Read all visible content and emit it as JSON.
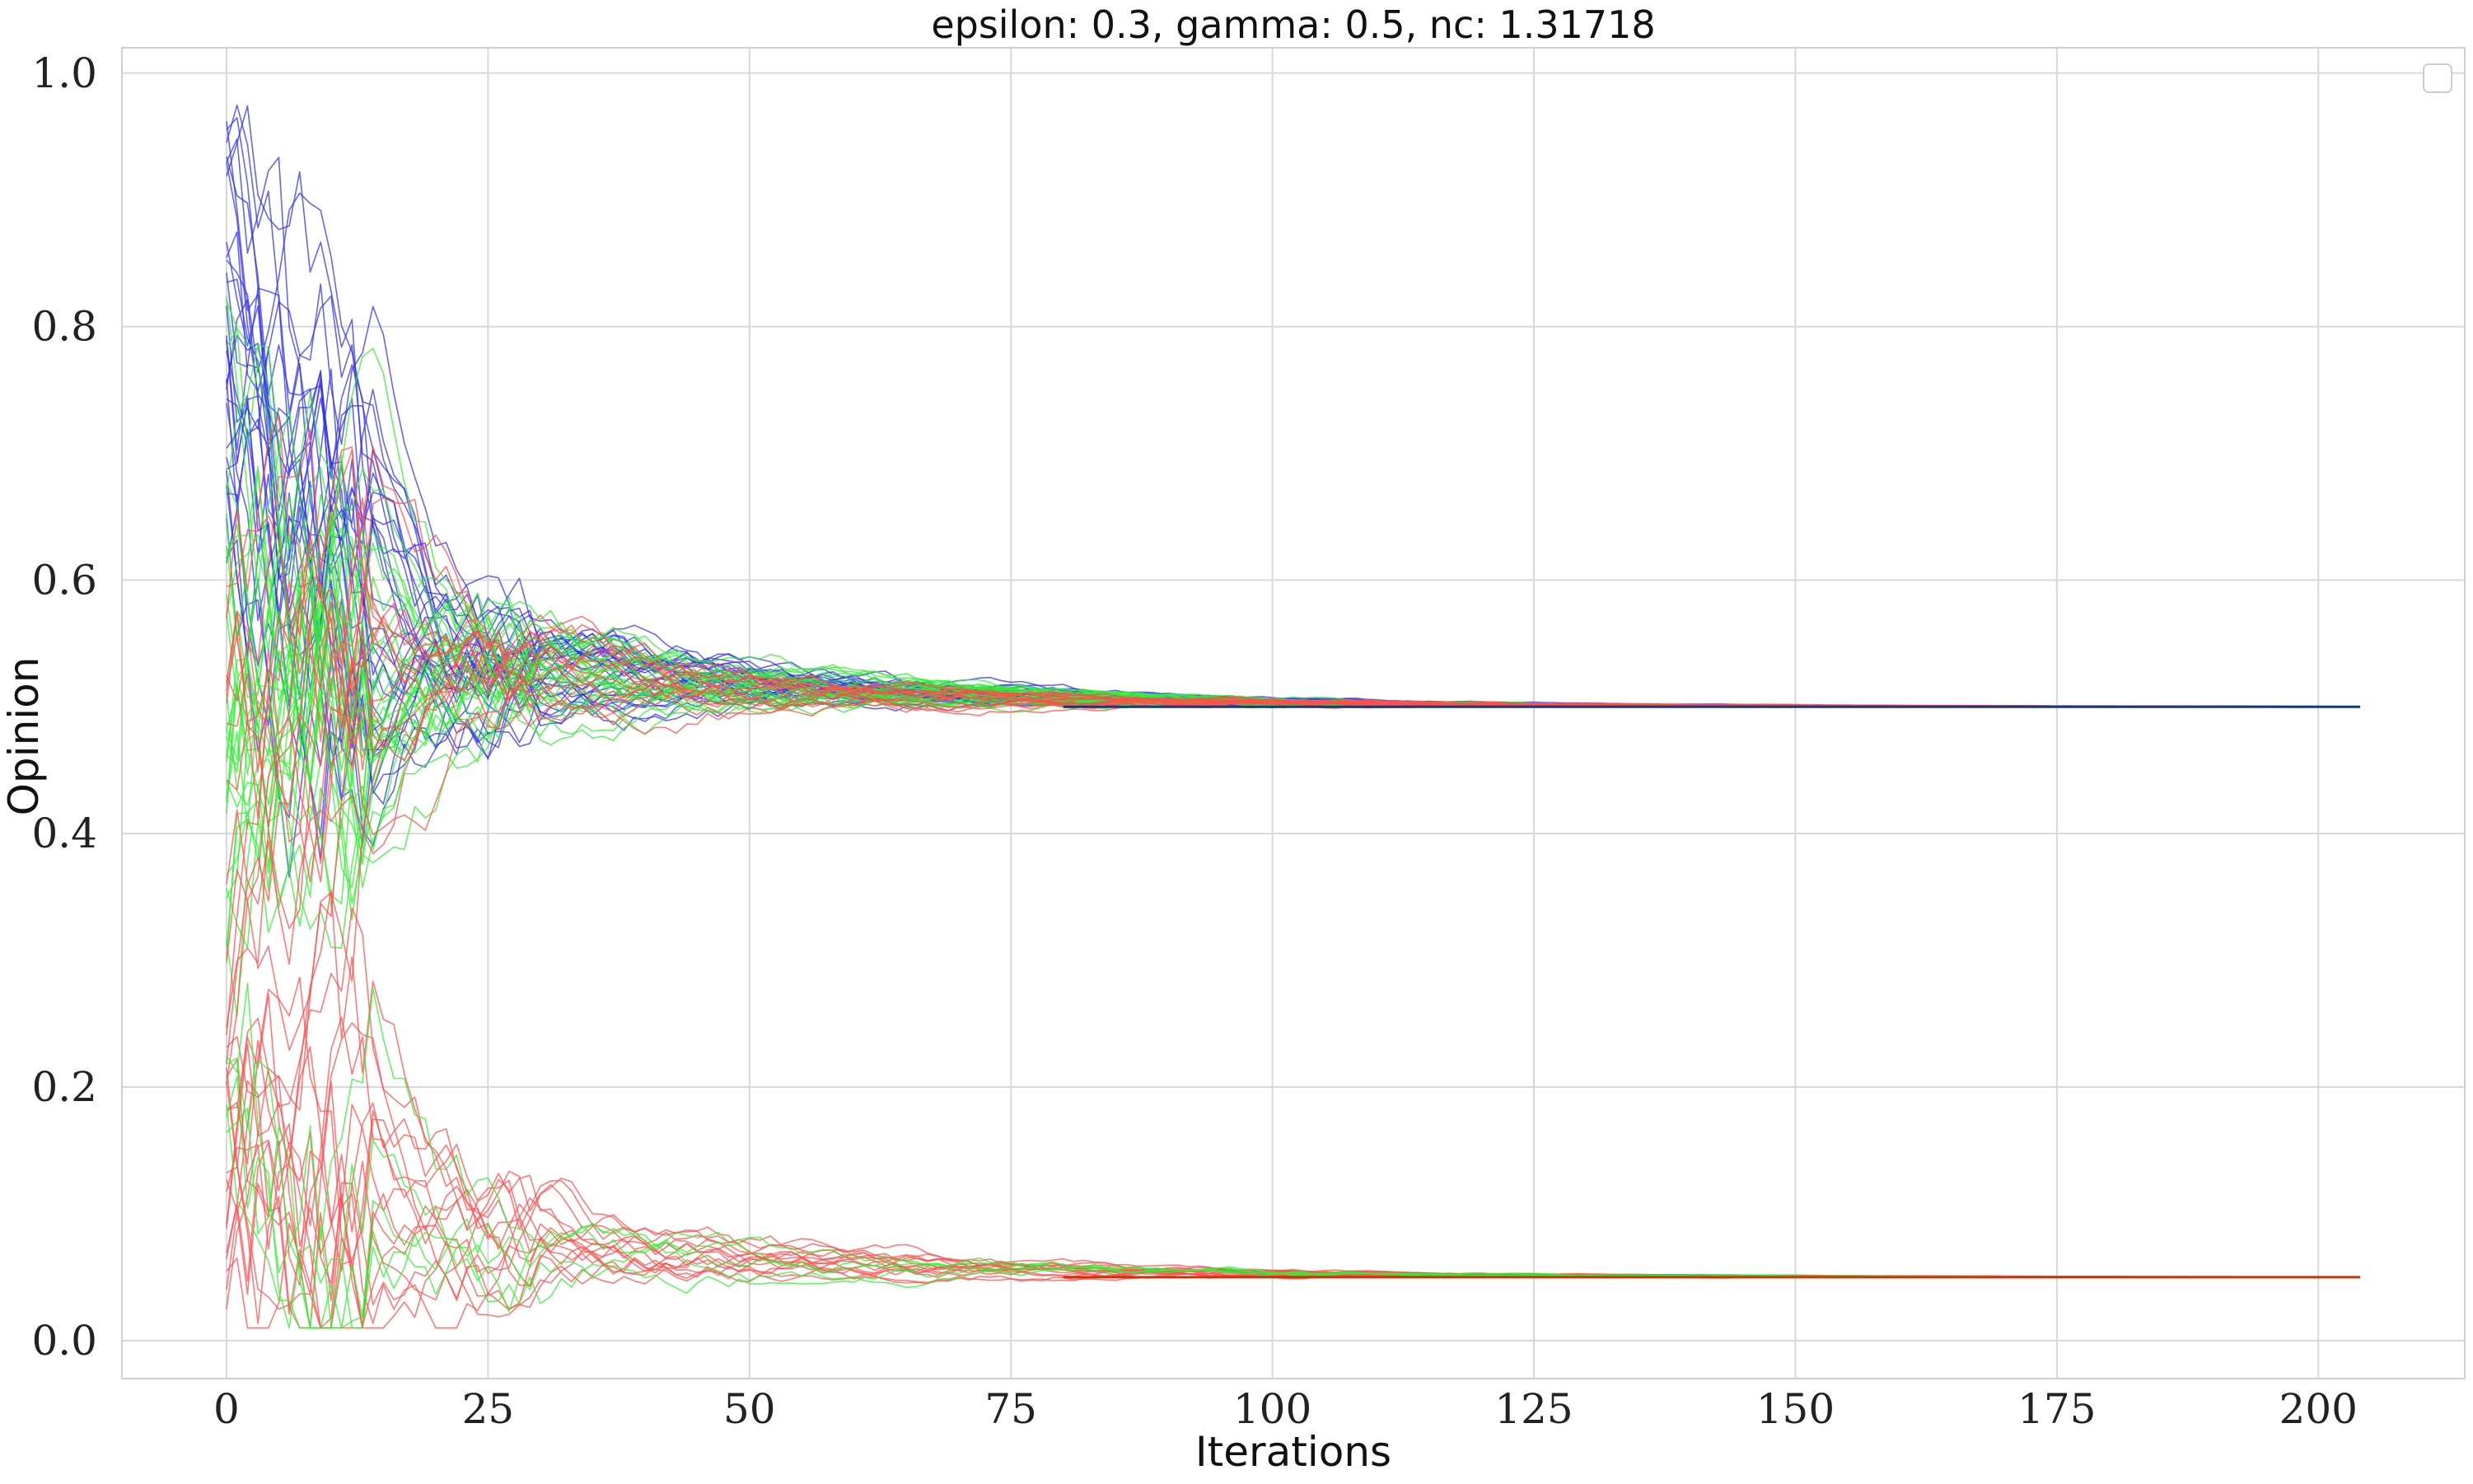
{
  "chart_data": {
    "type": "line",
    "title": "epsilon: 0.3, gamma: 0.5, nc: 1.31718",
    "xlabel": "Iterations",
    "ylabel": "Opinion",
    "xlim": [
      -10,
      214
    ],
    "ylim": [
      -0.03,
      1.02
    ],
    "xticks": [
      0,
      25,
      50,
      75,
      100,
      125,
      150,
      175,
      200
    ],
    "xtick_labels": [
      "0",
      "25",
      "50",
      "75",
      "100",
      "125",
      "150",
      "175",
      "200"
    ],
    "yticks": [
      0.0,
      0.2,
      0.4,
      0.6,
      0.8,
      1.0
    ],
    "ytick_labels": [
      "0.0",
      "0.2",
      "0.4",
      "0.6",
      "0.8",
      "1.0"
    ],
    "grid": true,
    "legend": "top-right (empty)",
    "x_max_iteration": 204,
    "colors": {
      "red": "#ff4d4d",
      "green": "#33ee33",
      "blue": "#3333ee",
      "blue_final": "#0a3a8c",
      "red_final": "#cc3300"
    },
    "groups": [
      {
        "color": "blue",
        "trajectories": 30,
        "initial_range": [
          0.6,
          0.97
        ],
        "converges_to": 0.5
      },
      {
        "color": "green",
        "trajectories": 30,
        "initial_range": [
          0.3,
          0.83
        ],
        "converges_to": 0.5
      },
      {
        "color": "red",
        "trajectories": 15,
        "initial_range": [
          0.2,
          0.6
        ],
        "converges_to": 0.5
      },
      {
        "color": "red",
        "trajectories": 15,
        "initial_range": [
          0.02,
          0.25
        ],
        "converges_to": 0.05
      },
      {
        "color": "green",
        "trajectories": 5,
        "initial_range": [
          0.15,
          0.25
        ],
        "converges_to": 0.05
      }
    ]
  }
}
